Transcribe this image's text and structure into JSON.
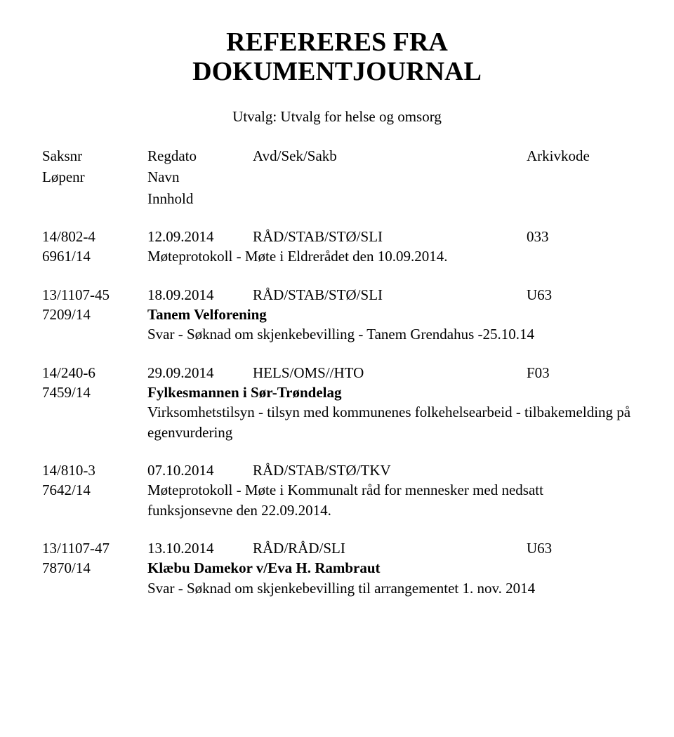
{
  "title_line1": "REFERERES FRA",
  "title_line2": "DOKUMENTJOURNAL",
  "subtitle": "Utvalg: Utvalg for helse og omsorg",
  "headers": {
    "saksnr": "Saksnr",
    "regdato": "Regdato",
    "avd": "Avd/Sek/Sakb",
    "arkiv": "Arkivkode",
    "lopenr": "Løpenr",
    "navn": "Navn",
    "innhold": "Innhold"
  },
  "entries": [
    {
      "saksnr": "14/802-4",
      "regdato": "12.09.2014",
      "avd": "RÅD/STAB/STØ/SLI",
      "arkiv": "033",
      "lopenr": "6961/14",
      "navn": "",
      "innhold": "Møteprotokoll - Møte i Eldrerådet den 10.09.2014."
    },
    {
      "saksnr": "13/1107-45",
      "regdato": "18.09.2014",
      "avd": "RÅD/STAB/STØ/SLI",
      "arkiv": "U63",
      "lopenr": "7209/14",
      "navn": "Tanem Velforening",
      "innhold": "Svar - Søknad om skjenkebevilling - Tanem Grendahus -25.10.14"
    },
    {
      "saksnr": "14/240-6",
      "regdato": "29.09.2014",
      "avd": "HELS/OMS//HTO",
      "arkiv": "F03",
      "lopenr": "7459/14",
      "navn": "Fylkesmannen i Sør-Trøndelag",
      "innhold": "Virksomhetstilsyn - tilsyn med kommunenes folkehelsearbeid - tilbakemelding på egenvurdering"
    },
    {
      "saksnr": "14/810-3",
      "regdato": "07.10.2014",
      "avd": "RÅD/STAB/STØ/TKV",
      "arkiv": "",
      "lopenr": "7642/14",
      "navn": "",
      "innhold": "Møteprotokoll - Møte i Kommunalt råd for mennesker med nedsatt funksjonsevne den 22.09.2014."
    },
    {
      "saksnr": "13/1107-47",
      "regdato": "13.10.2014",
      "avd": "RÅD/RÅD/SLI",
      "arkiv": "U63",
      "lopenr": "7870/14",
      "navn": "Klæbu Damekor v/Eva H. Rambraut",
      "innhold": "Svar - Søknad om skjenkebevilling til arrangementet 1. nov. 2014"
    }
  ]
}
